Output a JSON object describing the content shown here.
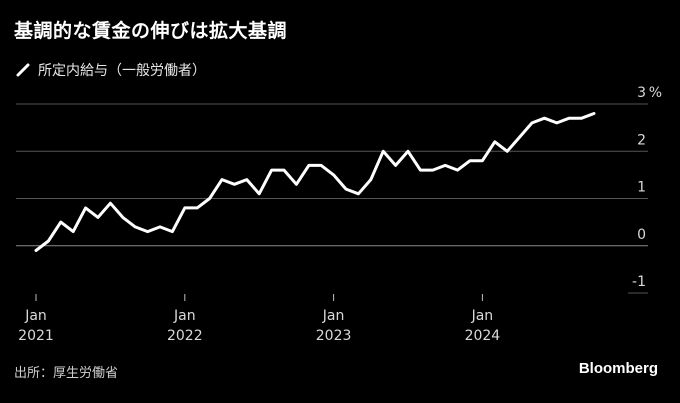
{
  "title": "基調的な賃金の伸びは拡大基調",
  "legend": {
    "label": "所定内給与（一般労働者）"
  },
  "source": "出所：厚生労働省",
  "brand": "Bloomberg",
  "colors": {
    "background": "#000000",
    "line": "#ffffff",
    "grid": "#555555",
    "text": "#d9d9d9"
  },
  "chart_data": {
    "type": "line",
    "title": "基調的な賃金の伸びは拡大基調",
    "xlabel": "",
    "ylabel": "",
    "y_unit": "%",
    "ylim": [
      -1,
      3
    ],
    "yticks": [
      3,
      2,
      1,
      0,
      -1
    ],
    "xticks": [
      {
        "month": "2021-01",
        "line1": "Jan",
        "line2": "2021"
      },
      {
        "month": "2022-01",
        "line1": "Jan",
        "line2": "2022"
      },
      {
        "month": "2023-01",
        "line1": "Jan",
        "line2": "2023"
      },
      {
        "month": "2024-01",
        "line1": "Jan",
        "line2": "2024"
      }
    ],
    "series": [
      {
        "name": "所定内給与（一般労働者）",
        "x": [
          "2021-01",
          "2021-02",
          "2021-03",
          "2021-04",
          "2021-05",
          "2021-06",
          "2021-07",
          "2021-08",
          "2021-09",
          "2021-10",
          "2021-11",
          "2021-12",
          "2022-01",
          "2022-02",
          "2022-03",
          "2022-04",
          "2022-05",
          "2022-06",
          "2022-07",
          "2022-08",
          "2022-09",
          "2022-10",
          "2022-11",
          "2022-12",
          "2023-01",
          "2023-02",
          "2023-03",
          "2023-04",
          "2023-05",
          "2023-06",
          "2023-07",
          "2023-08",
          "2023-09",
          "2023-10",
          "2023-11",
          "2023-12",
          "2024-01",
          "2024-02",
          "2024-03",
          "2024-04",
          "2024-05",
          "2024-06",
          "2024-07",
          "2024-08",
          "2024-09",
          "2024-10"
        ],
        "values": [
          -0.1,
          0.1,
          0.5,
          0.3,
          0.8,
          0.6,
          0.9,
          0.6,
          0.4,
          0.3,
          0.4,
          0.3,
          0.8,
          0.8,
          1.0,
          1.4,
          1.3,
          1.4,
          1.1,
          1.6,
          1.6,
          1.3,
          1.7,
          1.7,
          1.5,
          1.2,
          1.1,
          1.4,
          2.0,
          1.7,
          2.0,
          1.6,
          1.6,
          1.7,
          1.6,
          1.8,
          1.8,
          2.2,
          2.0,
          2.3,
          2.6,
          2.7,
          2.6,
          2.7,
          2.7,
          2.8
        ]
      }
    ]
  }
}
